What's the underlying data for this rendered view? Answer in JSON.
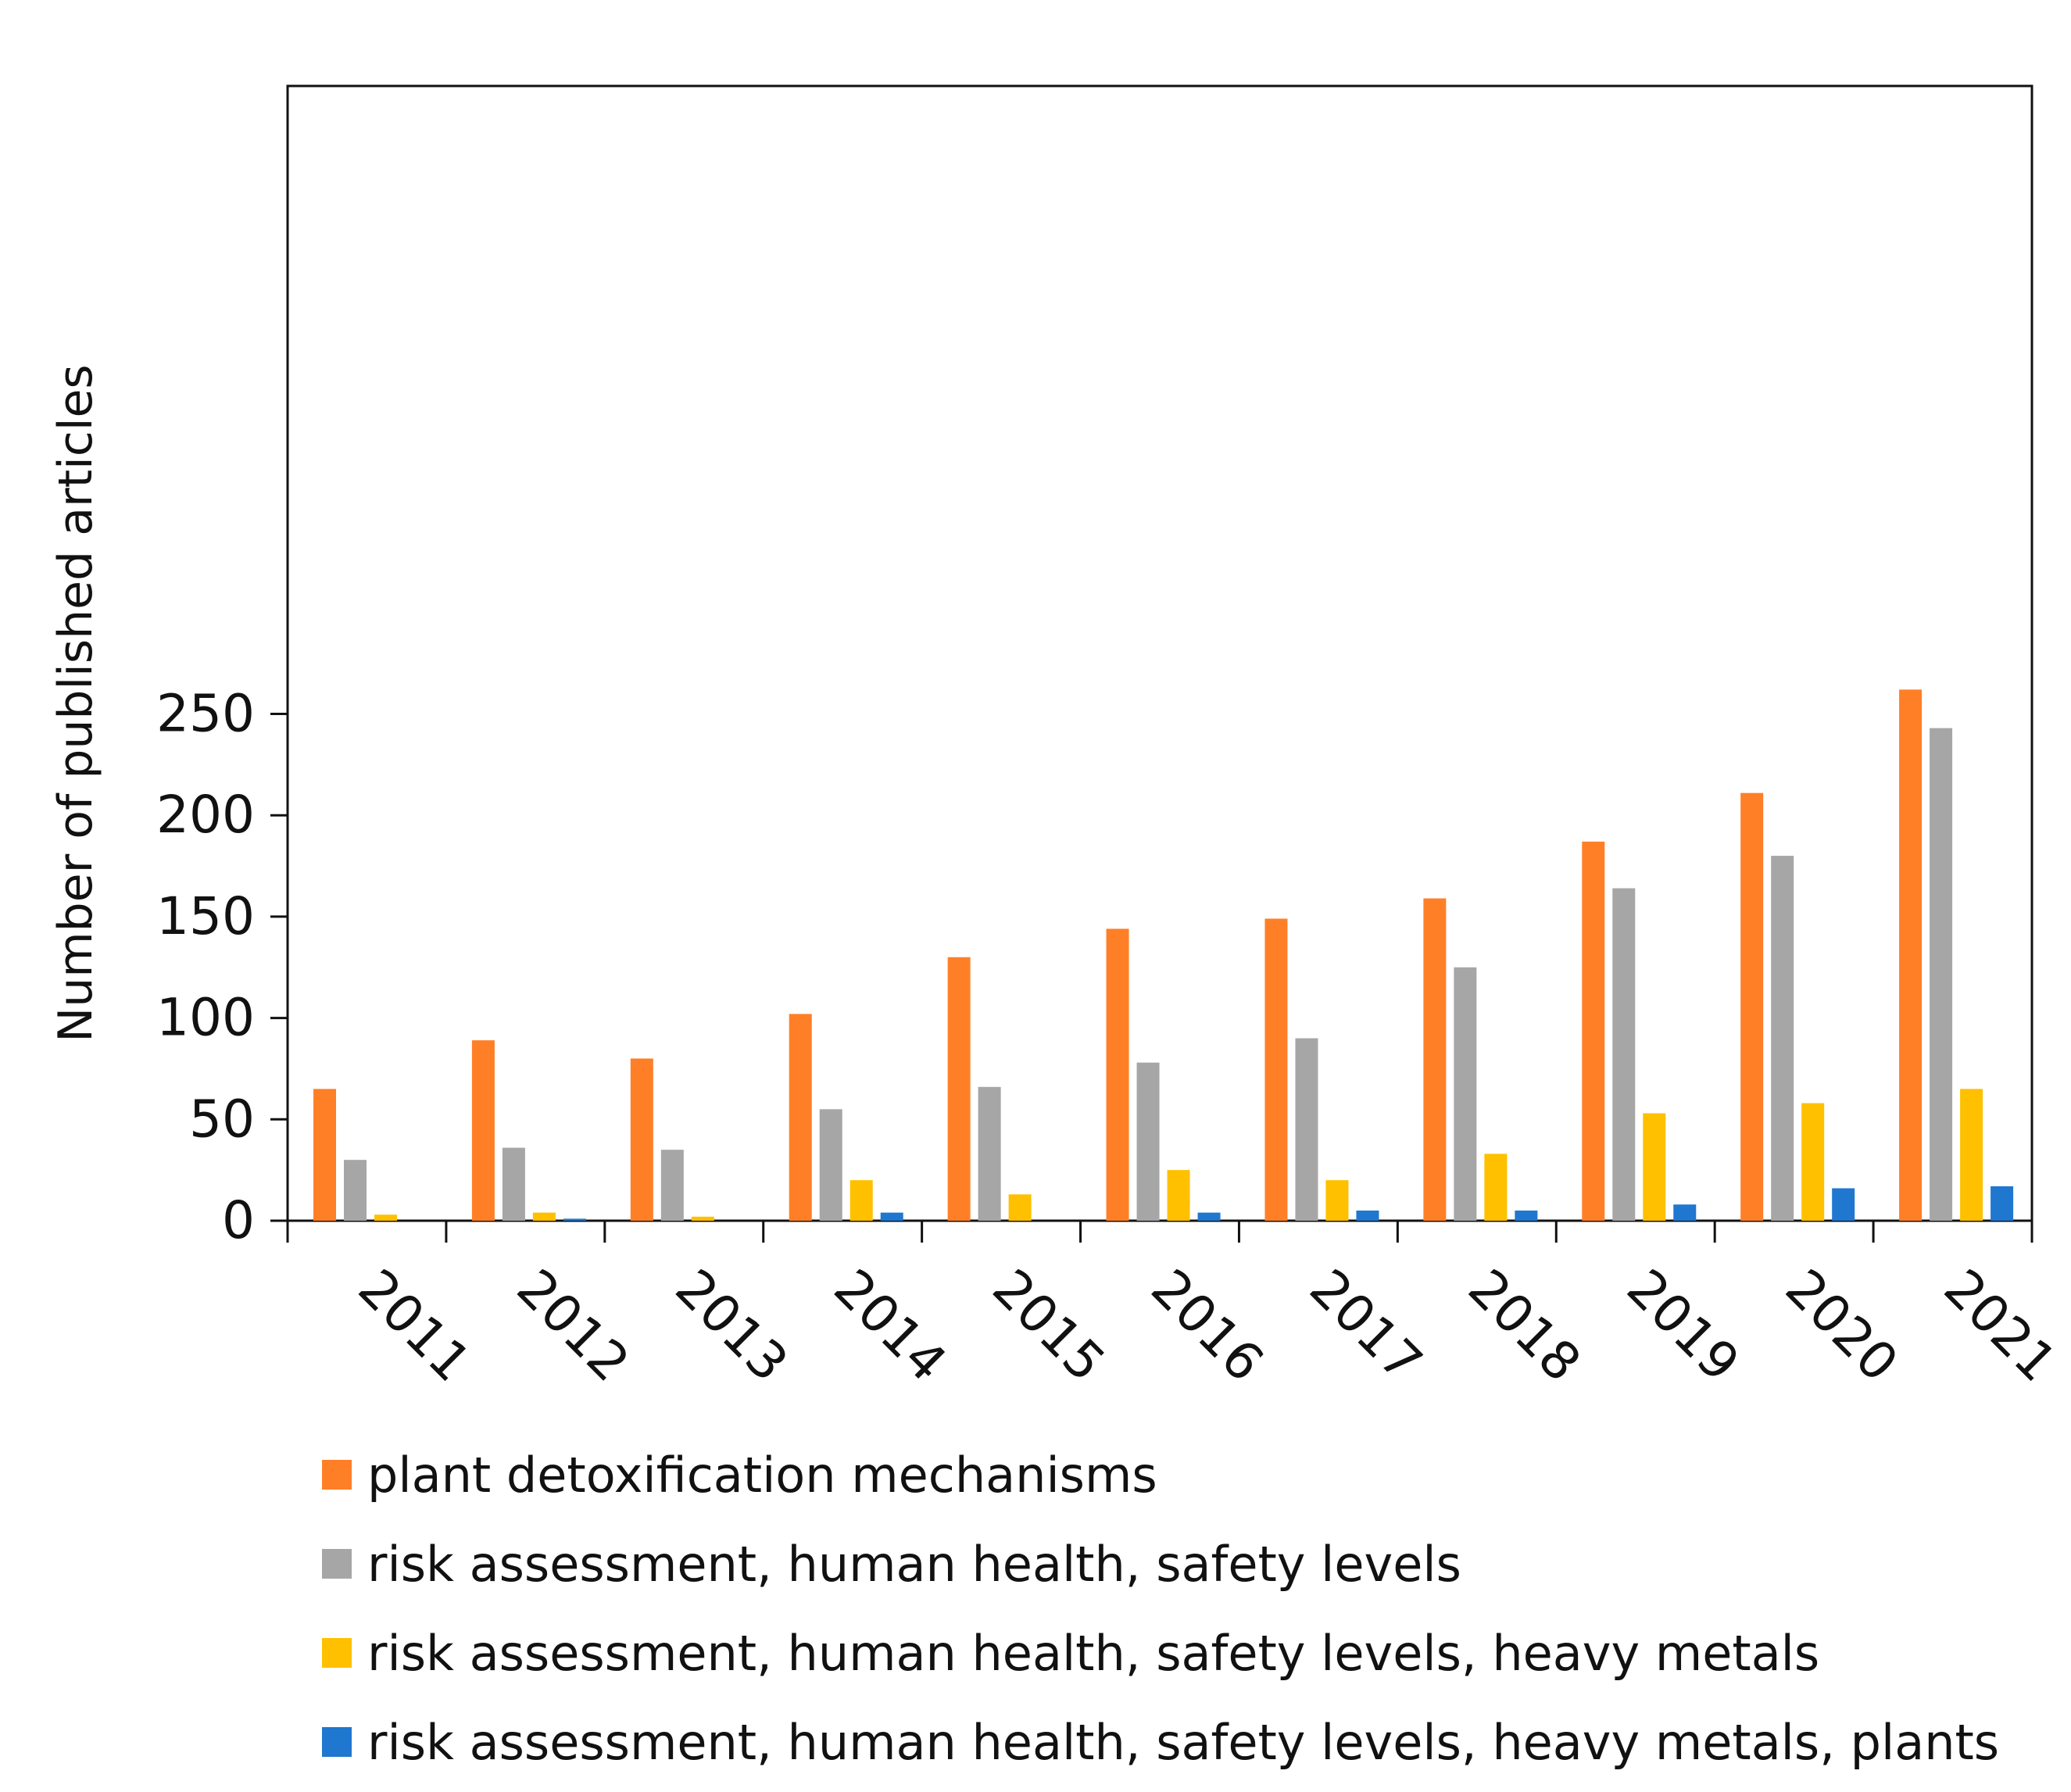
{
  "chart_data": {
    "type": "bar",
    "categories": [
      "2011",
      "2012",
      "2013",
      "2014",
      "2015",
      "2016",
      "2017",
      "2018",
      "2019",
      "2020",
      "2021"
    ],
    "series": [
      {
        "name": "plant detoxification mechanisms",
        "color": "#FF7F27",
        "values": [
          65,
          89,
          80,
          102,
          130,
          144,
          149,
          159,
          187,
          211,
          262
        ]
      },
      {
        "name": "risk assessment, human health, safety levels",
        "color": "#A6A6A6",
        "values": [
          30,
          36,
          35,
          55,
          66,
          78,
          90,
          125,
          164,
          180,
          243
        ]
      },
      {
        "name": "risk assessment, human health, safety levels, heavy metals",
        "color": "#FFC000",
        "values": [
          3,
          4,
          2,
          20,
          13,
          25,
          20,
          33,
          53,
          58,
          65
        ]
      },
      {
        "name": "risk assessment, human health, safety levels, heavy metals, plants",
        "color": "#1F77D0",
        "values": [
          0,
          1,
          0,
          4,
          0,
          4,
          5,
          5,
          8,
          16,
          17
        ]
      }
    ],
    "title": "",
    "xlabel": "",
    "ylabel": "Number of published articles",
    "ylim": [
      0,
      280
    ],
    "yticks": [
      0,
      50,
      100,
      150,
      200,
      250
    ],
    "grid": false,
    "legend_position": "bottom"
  }
}
